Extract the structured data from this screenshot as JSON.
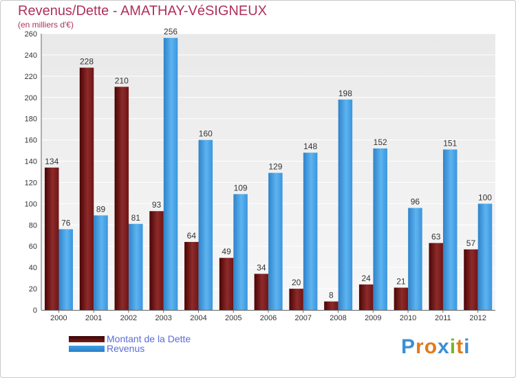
{
  "chart_data": {
    "type": "bar",
    "title": "Revenus/Dette - AMATHAY-VéSIGNEUX",
    "subtitle": "(en milliers d'€)",
    "xlabel": "",
    "ylabel": "",
    "categories": [
      "2000",
      "2001",
      "2002",
      "2003",
      "2004",
      "2005",
      "2006",
      "2007",
      "2008",
      "2009",
      "2010",
      "2011",
      "2012"
    ],
    "series": [
      {
        "name": "Montant de la Dette",
        "color": "#7a1c1c",
        "values": [
          134,
          228,
          210,
          93,
          64,
          49,
          34,
          20,
          8,
          24,
          21,
          63,
          57
        ]
      },
      {
        "name": "Revenus",
        "color": "#3f9de3",
        "values": [
          76,
          89,
          81,
          256,
          160,
          109,
          129,
          148,
          198,
          152,
          96,
          151,
          100
        ]
      }
    ],
    "ylim": [
      0,
      260
    ],
    "yticks": [
      0,
      20,
      40,
      60,
      80,
      100,
      120,
      140,
      160,
      180,
      200,
      220,
      240,
      260
    ],
    "grid": true,
    "legend_position": "bottom-left"
  },
  "brand": {
    "logo_text": "Proxiti"
  }
}
